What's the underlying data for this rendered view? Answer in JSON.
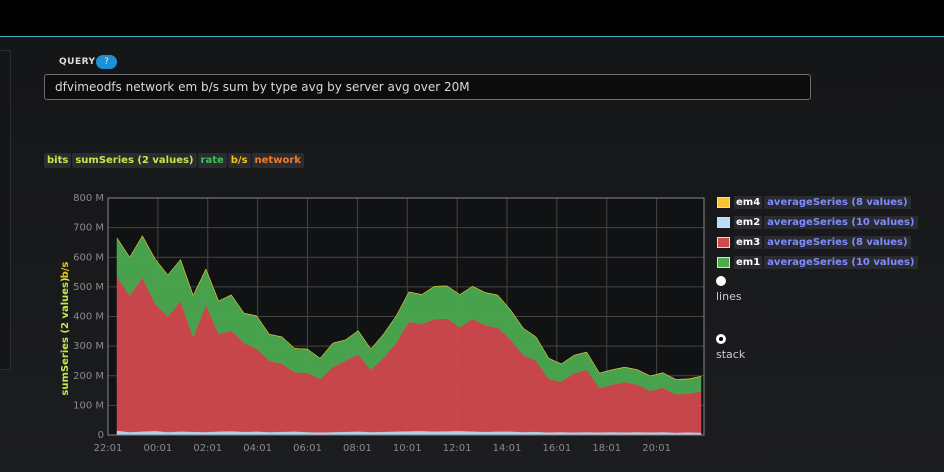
{
  "query": {
    "label": "QUERY",
    "help": "?",
    "value": "dfvimeodfs network em b/s sum by type avg by server avg over 20M"
  },
  "tags": [
    "bits",
    "sumSeries (2 values)",
    "rate",
    "b/s",
    "network"
  ],
  "legend": [
    {
      "name": "em4",
      "fn": "averageSeries (8 values)",
      "color": "#f5c431"
    },
    {
      "name": "em2",
      "fn": "averageSeries (10 values)",
      "color": "#b8dcf5"
    },
    {
      "name": "em3",
      "fn": "averageSeries (8 values)",
      "color": "#d24a4e"
    },
    {
      "name": "em1",
      "fn": "averageSeries (10 values)",
      "color": "#4caa4f"
    }
  ],
  "modes": {
    "lines": "lines",
    "stack": "stack",
    "selected": "stack"
  },
  "chart_data": {
    "type": "area",
    "stacked": true,
    "ylabel": "sumSeries (2 values)",
    "ylabel_unit": "b/s",
    "ylim": [
      0,
      800
    ],
    "y_unit": "M",
    "y_ticks": [
      "0",
      "100 M",
      "200 M",
      "300 M",
      "400 M",
      "500 M",
      "600 M",
      "700 M",
      "800 M"
    ],
    "x_ticks": [
      "22:01",
      "00:01",
      "02:01",
      "04:01",
      "06:01",
      "08:01",
      "10:01",
      "12:01",
      "14:01",
      "16:01",
      "18:01",
      "20:01"
    ],
    "x": [
      "22:30",
      "23:00",
      "23:30",
      "00:00",
      "00:30",
      "01:00",
      "01:30",
      "02:00",
      "02:30",
      "03:00",
      "03:30",
      "04:00",
      "04:30",
      "05:00",
      "05:30",
      "06:00",
      "06:30",
      "07:00",
      "07:30",
      "08:00",
      "08:30",
      "09:00",
      "09:30",
      "10:00",
      "10:30",
      "11:00",
      "11:30",
      "12:00",
      "12:30",
      "13:00",
      "13:30",
      "14:00",
      "14:30",
      "15:00",
      "15:30",
      "16:00",
      "16:30",
      "17:00",
      "17:30",
      "18:00",
      "18:30",
      "19:00",
      "19:30",
      "20:00",
      "20:30",
      "21:00",
      "21:30"
    ],
    "grid": true,
    "series": [
      {
        "name": "em2",
        "color": "#b8dcf5",
        "values": [
          15,
          10,
          12,
          14,
          10,
          12,
          11,
          10,
          12,
          13,
          11,
          12,
          10,
          11,
          12,
          10,
          9,
          10,
          11,
          12,
          10,
          11,
          12,
          13,
          14,
          12,
          13,
          14,
          12,
          11,
          12,
          12,
          10,
          11,
          9,
          10,
          9,
          10,
          9,
          10,
          9,
          10,
          9,
          10,
          8,
          9,
          8
        ]
      },
      {
        "name": "em3",
        "color": "#d24a4e",
        "values": [
          520,
          460,
          520,
          430,
          390,
          440,
          320,
          430,
          330,
          340,
          300,
          280,
          240,
          230,
          200,
          200,
          180,
          220,
          240,
          260,
          210,
          250,
          300,
          370,
          360,
          380,
          380,
          350,
          380,
          360,
          350,
          310,
          260,
          240,
          180,
          170,
          200,
          210,
          150,
          160,
          170,
          160,
          140,
          150,
          130,
          130,
          140
        ]
      },
      {
        "name": "em1",
        "color": "#4caa4f",
        "values": [
          130,
          130,
          140,
          150,
          140,
          140,
          140,
          120,
          110,
          120,
          100,
          110,
          90,
          90,
          80,
          80,
          70,
          80,
          70,
          80,
          70,
          80,
          90,
          100,
          100,
          110,
          110,
          110,
          110,
          110,
          110,
          100,
          90,
          80,
          70,
          60,
          60,
          60,
          50,
          50,
          50,
          50,
          50,
          50,
          50,
          50,
          50
        ]
      },
      {
        "name": "em4",
        "color": "#f5c431",
        "values": [
          0,
          0,
          0,
          0,
          0,
          0,
          0,
          0,
          0,
          0,
          0,
          0,
          0,
          0,
          0,
          0,
          0,
          0,
          0,
          0,
          0,
          0,
          0,
          0,
          0,
          0,
          0,
          0,
          0,
          0,
          0,
          0,
          0,
          0,
          0,
          0,
          0,
          0,
          0,
          0,
          0,
          0,
          0,
          0,
          0,
          0,
          0
        ]
      }
    ]
  }
}
